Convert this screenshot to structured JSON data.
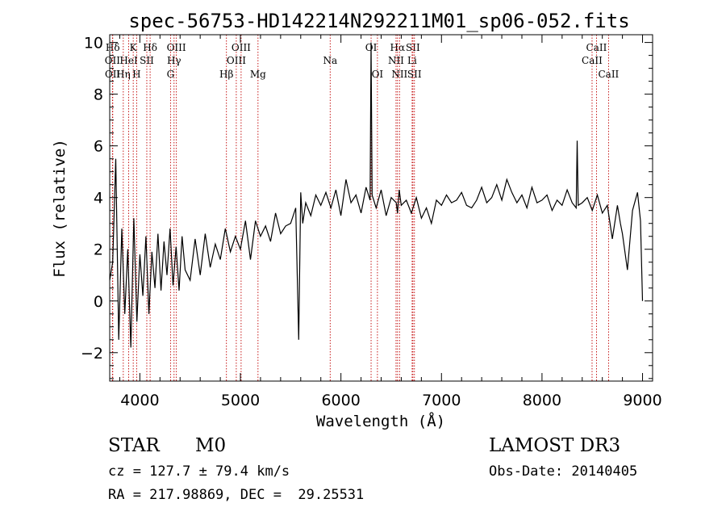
{
  "chart_data": {
    "type": "line",
    "title": "spec-56753-HD142214N292211M01_sp06-052.fits",
    "xlabel": "Wavelength (Å)",
    "ylabel": "Flux (relative)",
    "xlim": [
      3700,
      9100
    ],
    "ylim": [
      -3.1,
      10.3
    ],
    "x_ticks": [
      4000,
      5000,
      6000,
      7000,
      8000,
      9000
    ],
    "x_tick_labels": [
      "4000",
      "5000",
      "6000",
      "7000",
      "8000",
      "9000"
    ],
    "y_ticks": [
      -2,
      0,
      2,
      4,
      6,
      8,
      10
    ],
    "y_tick_labels": [
      "−2",
      "0",
      "2",
      "4",
      "6",
      "8",
      "10"
    ],
    "grid": false,
    "series": [
      {
        "name": "flux",
        "color": "#000000",
        "x": [
          3700,
          3730,
          3760,
          3790,
          3820,
          3850,
          3880,
          3910,
          3940,
          3970,
          4000,
          4030,
          4060,
          4090,
          4120,
          4150,
          4180,
          4210,
          4240,
          4270,
          4300,
          4330,
          4360,
          4390,
          4420,
          4450,
          4500,
          4550,
          4600,
          4650,
          4700,
          4750,
          4800,
          4850,
          4900,
          4950,
          5000,
          5050,
          5100,
          5150,
          5200,
          5250,
          5300,
          5350,
          5400,
          5450,
          5500,
          5550,
          5580,
          5600,
          5620,
          5650,
          5700,
          5750,
          5800,
          5850,
          5900,
          5950,
          6000,
          6050,
          6100,
          6150,
          6200,
          6250,
          6290,
          6300,
          6310,
          6350,
          6400,
          6450,
          6500,
          6550,
          6563,
          6580,
          6600,
          6650,
          6700,
          6750,
          6800,
          6850,
          6900,
          6950,
          7000,
          7050,
          7100,
          7150,
          7200,
          7250,
          7300,
          7350,
          7400,
          7450,
          7500,
          7550,
          7600,
          7650,
          7700,
          7750,
          7800,
          7850,
          7900,
          7950,
          8000,
          8050,
          8100,
          8150,
          8200,
          8250,
          8300,
          8340,
          8350,
          8360,
          8400,
          8450,
          8500,
          8550,
          8600,
          8650,
          8700,
          8750,
          8780,
          8800,
          8850,
          8900,
          8950,
          8980,
          9000
        ],
        "y": [
          0.8,
          1.5,
          5.5,
          -1.5,
          2.8,
          -0.5,
          2.0,
          -1.8,
          3.2,
          -0.8,
          1.8,
          0.2,
          2.5,
          -0.5,
          1.9,
          0.5,
          2.6,
          0.4,
          2.3,
          1.0,
          2.8,
          0.6,
          2.1,
          0.4,
          2.5,
          1.2,
          0.8,
          2.4,
          1.0,
          2.6,
          1.3,
          2.2,
          1.6,
          2.8,
          1.9,
          2.5,
          2.0,
          3.1,
          1.6,
          3.1,
          2.5,
          2.9,
          2.3,
          3.4,
          2.6,
          2.9,
          3.0,
          3.6,
          -1.5,
          4.2,
          3.0,
          3.8,
          3.3,
          4.1,
          3.7,
          4.2,
          3.6,
          4.3,
          3.3,
          4.7,
          3.8,
          4.1,
          3.4,
          4.4,
          3.9,
          10.0,
          4.1,
          3.6,
          4.3,
          3.3,
          4.0,
          3.8,
          3.4,
          4.3,
          3.7,
          3.9,
          3.4,
          4.0,
          3.2,
          3.6,
          3.0,
          3.9,
          3.7,
          4.1,
          3.8,
          3.9,
          4.2,
          3.7,
          3.6,
          3.9,
          4.4,
          3.8,
          4.0,
          4.5,
          3.9,
          4.7,
          4.2,
          3.8,
          4.1,
          3.6,
          4.4,
          3.8,
          3.9,
          4.1,
          3.5,
          3.9,
          3.7,
          4.3,
          3.8,
          3.6,
          6.2,
          3.7,
          3.8,
          4.0,
          3.5,
          4.1,
          3.4,
          3.7,
          2.4,
          3.7,
          3.0,
          2.6,
          1.2,
          3.5,
          4.2,
          3.1,
          0.0
        ]
      }
    ],
    "spectral_lines": [
      {
        "label": "Hδ",
        "x": 3730,
        "row": 1
      },
      {
        "label": "OII",
        "x": 3727,
        "row": 2
      },
      {
        "label": "OII",
        "x": 3729,
        "row": 3
      },
      {
        "label": "K",
        "x": 3934,
        "row": 1
      },
      {
        "label": "HeI",
        "x": 3889,
        "row": 2
      },
      {
        "label": "Hη",
        "x": 3835,
        "row": 3
      },
      {
        "label": "SII",
        "x": 4069,
        "row": 2
      },
      {
        "label": "H",
        "x": 3968,
        "row": 3
      },
      {
        "label": "Hδ",
        "x": 4102,
        "row": 1
      },
      {
        "label": "OIII",
        "x": 4363,
        "row": 1
      },
      {
        "label": "Hγ",
        "x": 4340,
        "row": 2
      },
      {
        "label": "G",
        "x": 4305,
        "row": 3
      },
      {
        "label": "OIII",
        "x": 5007,
        "row": 1
      },
      {
        "label": "OIII",
        "x": 4959,
        "row": 2
      },
      {
        "label": "Hβ",
        "x": 4861,
        "row": 3
      },
      {
        "label": "Mg",
        "x": 5175,
        "row": 3
      },
      {
        "label": "Na",
        "x": 5893,
        "row": 2
      },
      {
        "label": "OI",
        "x": 6300,
        "row": 1
      },
      {
        "label": "OI",
        "x": 6363,
        "row": 3
      },
      {
        "label": "Hα",
        "x": 6563,
        "row": 1
      },
      {
        "label": "NII",
        "x": 6548,
        "row": 2
      },
      {
        "label": "NII",
        "x": 6583,
        "row": 3
      },
      {
        "label": "SII",
        "x": 6716,
        "row": 1
      },
      {
        "label": "Li",
        "x": 6708,
        "row": 2
      },
      {
        "label": "SII",
        "x": 6731,
        "row": 3
      },
      {
        "label": "CaII",
        "x": 8542,
        "row": 1
      },
      {
        "label": "CaII",
        "x": 8498,
        "row": 2
      },
      {
        "label": "CaII",
        "x": 8662,
        "row": 3
      }
    ]
  },
  "info": {
    "object_class": "STAR",
    "subclass": "M0",
    "survey": "LAMOST DR3",
    "redshift": "cz = 127.7 ± 79.4 km/s",
    "obs_date": "Obs-Date: 20140405",
    "coords": "RA = 217.98869, DEC =  29.25531"
  },
  "colors": {
    "line_marker": "#c00000",
    "spectrum": "#000000",
    "text": "#000000"
  }
}
